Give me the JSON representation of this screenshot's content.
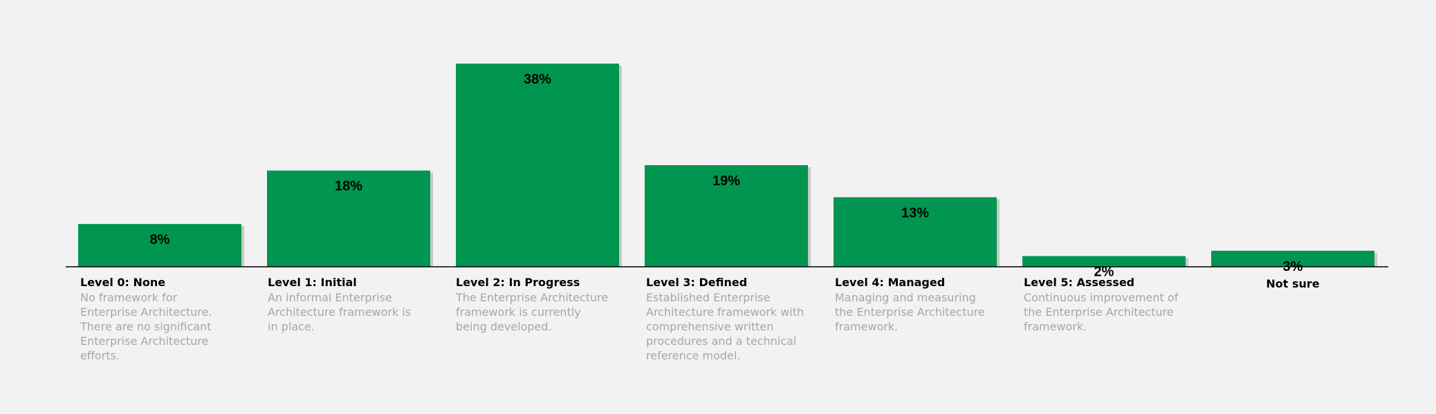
{
  "chart_data": {
    "type": "bar",
    "title": "",
    "xlabel": "",
    "ylabel": "",
    "ylim": [
      0,
      40
    ],
    "grid": false,
    "legend": "none",
    "value_suffix": "%",
    "categories": [
      "Level 0: None",
      "Level 1: Initial",
      "Level 2: In Progress",
      "Level 3: Defined",
      "Level 4: Managed",
      "Level 5: Assessed",
      "Not sure"
    ],
    "values": [
      8,
      18,
      38,
      19,
      13,
      2,
      3
    ],
    "descriptions": [
      "No framework for Enterprise Architecture. There are no significant Enterprise Architecture efforts.",
      "An informal Enterprise Architecture framework is in place.",
      "The Enterprise Architecture framework is currently being developed.",
      "Established Enterprise Architecture framework with comprehensive written procedures and a technical reference model.",
      "Managing and measuring the Enterprise Architecture framework.",
      "Continuous improvement of the Enterprise Architecture framework.",
      ""
    ]
  },
  "colors": {
    "bar": "#00964f",
    "shadow": "#c8c8c8",
    "axis": "#000000",
    "value_label": "#000000",
    "category_title": "#000000",
    "description": "#a6a6a6",
    "background": "#f2f2f2"
  }
}
